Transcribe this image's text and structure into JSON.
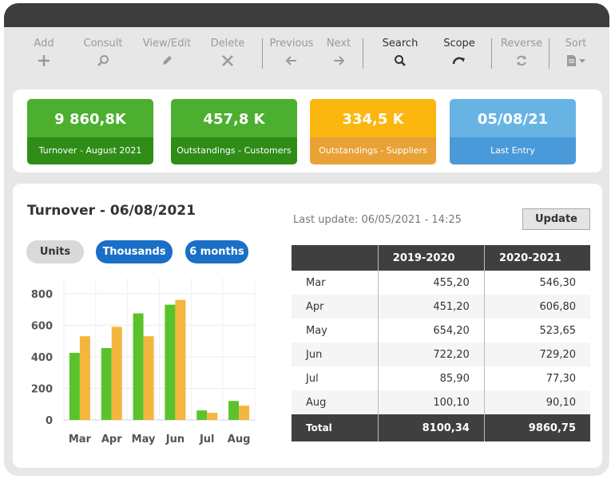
{
  "toolbar": {
    "add": "Add",
    "consult": "Consult",
    "view_edit": "View/Edit",
    "delete": "Delete",
    "previous": "Previous",
    "next": "Next",
    "search": "Search",
    "scope": "Scope",
    "reverse": "Reverse",
    "sort": "Sort"
  },
  "kpis": [
    {
      "value": "9 860,8K",
      "caption": "Turnover - August 2021",
      "color": "#4caf2f",
      "caption_color": "#2f8d17"
    },
    {
      "value": "457,8 K",
      "caption": "Outstandings - Customers",
      "color": "#4caf2f",
      "caption_color": "#2f8d17"
    },
    {
      "value": "334,5 K",
      "caption": "Outstandings - Suppliers",
      "color": "#fbb710",
      "caption_color": "#e9a235"
    },
    {
      "value": "05/08/21",
      "caption": "Last Entry",
      "color": "#67b4e4",
      "caption_color": "#4a9ada"
    }
  ],
  "main": {
    "title": "Turnover - 06/08/2021",
    "last_update": "Last update: 06/05/2021 - 14:25",
    "update_button": "Update",
    "filters": [
      "Units",
      "Thousands",
      "6 months"
    ]
  },
  "chart_data": {
    "type": "bar",
    "categories": [
      "Mar",
      "Apr",
      "May",
      "Jun",
      "Jul",
      "Aug"
    ],
    "series": [
      {
        "values": [
          425,
          455,
          675,
          730,
          60,
          120
        ],
        "color": "#5ac32b"
      },
      {
        "values": [
          530,
          590,
          530,
          760,
          45,
          90
        ],
        "color": "#f4b63d"
      }
    ],
    "y_ticks": [
      0,
      200,
      400,
      600,
      800
    ],
    "ylim": [
      0,
      900
    ],
    "grid": true
  },
  "table": {
    "headers": [
      "",
      "2019-2020",
      "2020-2021"
    ],
    "rows": [
      [
        "Mar",
        "455,20",
        "546,30"
      ],
      [
        "Apr",
        "451,20",
        "606,80"
      ],
      [
        "May",
        "654,20",
        "523,65"
      ],
      [
        "Jun",
        "722,20",
        "729,20"
      ],
      [
        "Jul",
        "85,90",
        "77,30"
      ],
      [
        "Aug",
        "100,10",
        "90,10"
      ]
    ],
    "total": [
      "Total",
      "8100,34",
      "9860,75"
    ]
  }
}
